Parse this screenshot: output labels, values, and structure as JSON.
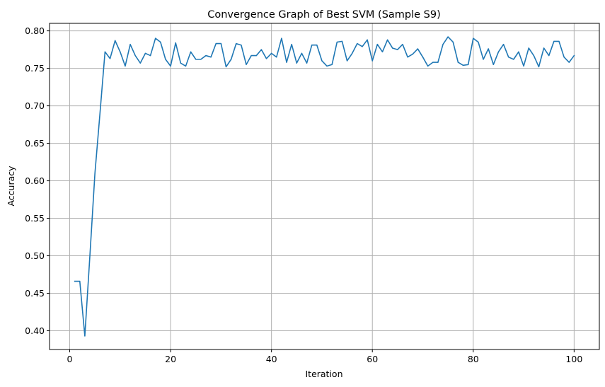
{
  "chart_data": {
    "type": "line",
    "title": "Convergence Graph of Best SVM (Sample S9)",
    "xlabel": "Iteration",
    "ylabel": "Accuracy",
    "xlim": [
      -4,
      105
    ],
    "ylim": [
      0.375,
      0.81
    ],
    "xticks": [
      0,
      20,
      40,
      60,
      80,
      100
    ],
    "yticks": [
      0.4,
      0.45,
      0.5,
      0.55,
      0.6,
      0.65,
      0.7,
      0.75,
      0.8
    ],
    "xtick_labels": [
      "0",
      "20",
      "40",
      "60",
      "80",
      "100"
    ],
    "ytick_labels": [
      "0.40",
      "0.45",
      "0.50",
      "0.55",
      "0.60",
      "0.65",
      "0.70",
      "0.75",
      "0.80"
    ],
    "grid": true,
    "series": [
      {
        "color": "#1f77b4",
        "x": [
          1,
          2,
          3,
          4,
          5,
          6,
          7,
          8,
          9,
          10,
          11,
          12,
          13,
          14,
          15,
          16,
          17,
          18,
          19,
          20,
          21,
          22,
          23,
          24,
          25,
          26,
          27,
          28,
          29,
          30,
          31,
          32,
          33,
          34,
          35,
          36,
          37,
          38,
          39,
          40,
          41,
          42,
          43,
          44,
          45,
          46,
          47,
          48,
          49,
          50,
          51,
          52,
          53,
          54,
          55,
          56,
          57,
          58,
          59,
          60,
          61,
          62,
          63,
          64,
          65,
          66,
          67,
          68,
          69,
          70,
          71,
          72,
          73,
          74,
          75,
          76,
          77,
          78,
          79,
          80,
          81,
          82,
          83,
          84,
          85,
          86,
          87,
          88,
          89,
          90,
          91,
          92,
          93,
          94,
          95,
          96,
          97,
          98,
          99,
          100
        ],
        "values": [
          0.466,
          0.466,
          0.393,
          0.5,
          0.61,
          0.69,
          0.772,
          0.763,
          0.787,
          0.772,
          0.753,
          0.782,
          0.767,
          0.757,
          0.77,
          0.767,
          0.79,
          0.785,
          0.762,
          0.753,
          0.784,
          0.757,
          0.753,
          0.772,
          0.762,
          0.762,
          0.767,
          0.765,
          0.783,
          0.783,
          0.752,
          0.762,
          0.783,
          0.781,
          0.755,
          0.767,
          0.767,
          0.775,
          0.763,
          0.77,
          0.765,
          0.79,
          0.758,
          0.782,
          0.757,
          0.77,
          0.757,
          0.781,
          0.781,
          0.76,
          0.753,
          0.755,
          0.785,
          0.786,
          0.76,
          0.77,
          0.783,
          0.779,
          0.788,
          0.76,
          0.782,
          0.772,
          0.788,
          0.777,
          0.775,
          0.782,
          0.765,
          0.769,
          0.776,
          0.765,
          0.753,
          0.758,
          0.758,
          0.782,
          0.792,
          0.785,
          0.758,
          0.754,
          0.755,
          0.79,
          0.785,
          0.762,
          0.776,
          0.755,
          0.772,
          0.782,
          0.765,
          0.762,
          0.772,
          0.753,
          0.777,
          0.767,
          0.752,
          0.777,
          0.767,
          0.786,
          0.786,
          0.765,
          0.758,
          0.767
        ]
      }
    ]
  }
}
